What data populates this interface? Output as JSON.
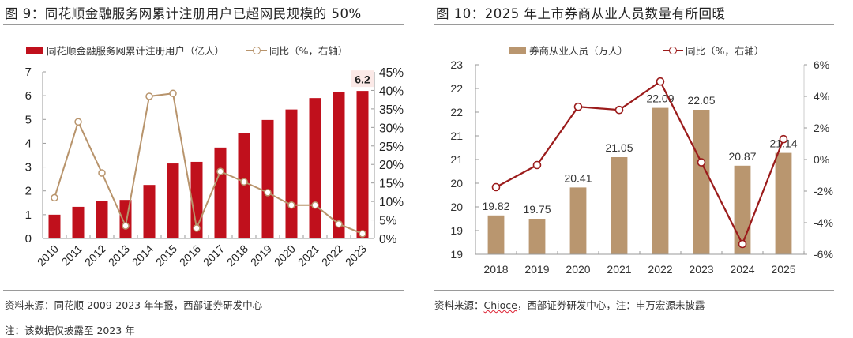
{
  "figures": {
    "left": {
      "title": "图 9：同花顺金融服务网累计注册用户已超网民规模的 50%",
      "source": "资料来源：同花顺 2009-2023 年年报，西部证券研发中心",
      "note": "注：该数据仅披露至 2023 年"
    },
    "right": {
      "title": "图 10：2025 年上市券商从业人员数量有所回暖",
      "source_prefix": "资料来源：",
      "source_brand": "Chioce",
      "source_suffix": "，西部证券研发中心，注：申万宏源未披露"
    }
  },
  "chart_data": [
    {
      "type": "bar",
      "title": "同花顺金融服务网累计注册用户已超网民规模的 50%",
      "categories": [
        "2010",
        "2011",
        "2012",
        "2013",
        "2014",
        "2015",
        "2016",
        "2017",
        "2018",
        "2019",
        "2020",
        "2021",
        "2022",
        "2023"
      ],
      "series": [
        {
          "name": "同花顺金融服务网累计注册用户（亿人）",
          "type": "bar",
          "axis": "left",
          "color": "#c0101c",
          "values": [
            1.0,
            1.33,
            1.57,
            1.62,
            2.25,
            3.15,
            3.22,
            3.82,
            4.42,
            4.98,
            5.42,
            5.9,
            6.15,
            6.2
          ]
        },
        {
          "name": "同比（%，右轴）",
          "type": "line",
          "axis": "right",
          "color": "#b8946c",
          "values": [
            11.0,
            31.5,
            17.7,
            3.4,
            38.4,
            39.2,
            2.8,
            18.1,
            15.3,
            12.4,
            9.0,
            9.0,
            3.9,
            1.3
          ]
        }
      ],
      "left_axis": {
        "min": 0,
        "max": 7,
        "ticks": [
          "0",
          "1",
          "2",
          "3",
          "4",
          "5",
          "6",
          "7"
        ]
      },
      "right_axis": {
        "min": 0,
        "max": 45,
        "ticks": [
          "0%",
          "5%",
          "10%",
          "15%",
          "20%",
          "25%",
          "30%",
          "35%",
          "40%",
          "45%"
        ]
      },
      "annotations": [
        {
          "category": "2023",
          "text": "6.2"
        }
      ],
      "legend": {
        "position": "top"
      },
      "grid": false
    },
    {
      "type": "bar",
      "title": "2025 年上市券商从业人员数量有所回暖",
      "categories": [
        "2018",
        "2019",
        "2020",
        "2021",
        "2022",
        "2023",
        "2024",
        "2025"
      ],
      "series": [
        {
          "name": "券商从业人员（万人）",
          "type": "bar",
          "axis": "left",
          "color": "#b9966f",
          "values": [
            19.82,
            19.75,
            20.41,
            21.05,
            22.09,
            22.05,
            20.87,
            21.14
          ],
          "labels": [
            "19.82",
            "19.75",
            "20.41",
            "21.05",
            "22.09",
            "22.05",
            "20.87",
            "21.14"
          ]
        },
        {
          "name": "同比（%，右轴）",
          "type": "line",
          "axis": "right",
          "color": "#9b1b1b",
          "values": [
            -1.75,
            -0.35,
            3.34,
            3.14,
            4.94,
            -0.18,
            -5.35,
            1.29
          ]
        }
      ],
      "left_axis": {
        "min": 19,
        "max": 23,
        "ticks": [
          "19",
          "19",
          "20",
          "20",
          "21",
          "21",
          "22",
          "22",
          "23"
        ]
      },
      "right_axis": {
        "min": -6,
        "max": 6,
        "ticks": [
          "-6%",
          "-4%",
          "-2%",
          "0%",
          "2%",
          "4%",
          "6%"
        ]
      },
      "legend": {
        "position": "top"
      },
      "grid": false
    }
  ]
}
